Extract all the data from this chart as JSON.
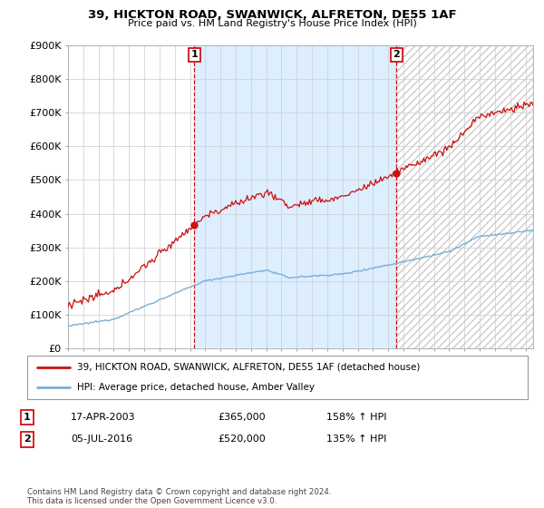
{
  "title": "39, HICKTON ROAD, SWANWICK, ALFRETON, DE55 1AF",
  "subtitle": "Price paid vs. HM Land Registry's House Price Index (HPI)",
  "ylabel_ticks": [
    "£0",
    "£100K",
    "£200K",
    "£300K",
    "£400K",
    "£500K",
    "£600K",
    "£700K",
    "£800K",
    "£900K"
  ],
  "ylim": [
    0,
    900000
  ],
  "xlim_start": 1995.0,
  "xlim_end": 2025.5,
  "hpi_color": "#7bafd4",
  "price_color": "#cc1111",
  "shade_color": "#ddeeff",
  "sale1_x": 2003.29,
  "sale1_y": 365000,
  "sale1_label": "1",
  "sale2_x": 2016.54,
  "sale2_y": 520000,
  "sale2_label": "2",
  "legend_line1": "39, HICKTON ROAD, SWANWICK, ALFRETON, DE55 1AF (detached house)",
  "legend_line2": "HPI: Average price, detached house, Amber Valley",
  "table_row1": [
    "1",
    "17-APR-2003",
    "£365,000",
    "158% ↑ HPI"
  ],
  "table_row2": [
    "2",
    "05-JUL-2016",
    "£520,000",
    "135% ↑ HPI"
  ],
  "footer": "Contains HM Land Registry data © Crown copyright and database right 2024.\nThis data is licensed under the Open Government Licence v3.0.",
  "background_color": "#ffffff",
  "grid_color": "#cccccc"
}
